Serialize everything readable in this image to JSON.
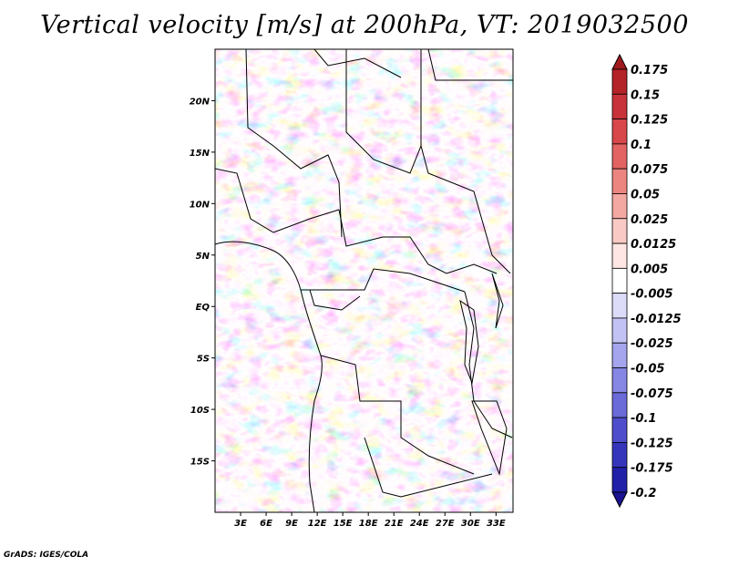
{
  "title": "Vertical velocity [m/s] at 200hPa, VT: 2019032500",
  "footer": "GrADS: IGES/COLA",
  "map": {
    "lon_range": [
      0,
      35
    ],
    "lat_range": [
      -20,
      25
    ],
    "lat_ticks": [
      {
        "value": 20,
        "label": "20N"
      },
      {
        "value": 15,
        "label": "15N"
      },
      {
        "value": 10,
        "label": "10N"
      },
      {
        "value": 5,
        "label": "5N"
      },
      {
        "value": 0,
        "label": "EQ"
      },
      {
        "value": -5,
        "label": "5S"
      },
      {
        "value": -10,
        "label": "10S"
      },
      {
        "value": -15,
        "label": "15S"
      }
    ],
    "lon_ticks": [
      {
        "value": 3,
        "label": "3E"
      },
      {
        "value": 6,
        "label": "6E"
      },
      {
        "value": 9,
        "label": "9E"
      },
      {
        "value": 12,
        "label": "12E"
      },
      {
        "value": 15,
        "label": "15E"
      },
      {
        "value": 18,
        "label": "18E"
      },
      {
        "value": 21,
        "label": "21E"
      },
      {
        "value": 24,
        "label": "24E"
      },
      {
        "value": 27,
        "label": "27E"
      },
      {
        "value": 30,
        "label": "30E"
      },
      {
        "value": 33,
        "label": "33E"
      }
    ]
  },
  "colorbar": {
    "labels": [
      "0.175",
      "0.15",
      "0.125",
      "0.1",
      "0.075",
      "0.05",
      "0.025",
      "0.0125",
      "0.005",
      "-0.005",
      "-0.0125",
      "-0.025",
      "-0.05",
      "-0.075",
      "-0.1",
      "-0.125",
      "-0.175",
      "-0.2"
    ],
    "colors": [
      "#a01a1e",
      "#b42328",
      "#c8323a",
      "#d8474a",
      "#e26362",
      "#ec8580",
      "#f4a8a2",
      "#f9cac5",
      "#fde6e3",
      "#ffffff",
      "#dcdcf8",
      "#c2c2f4",
      "#a5a5ee",
      "#8686e4",
      "#6a6ad8",
      "#4e4ecc",
      "#3535bc",
      "#2020a8",
      "#1a1290"
    ]
  }
}
